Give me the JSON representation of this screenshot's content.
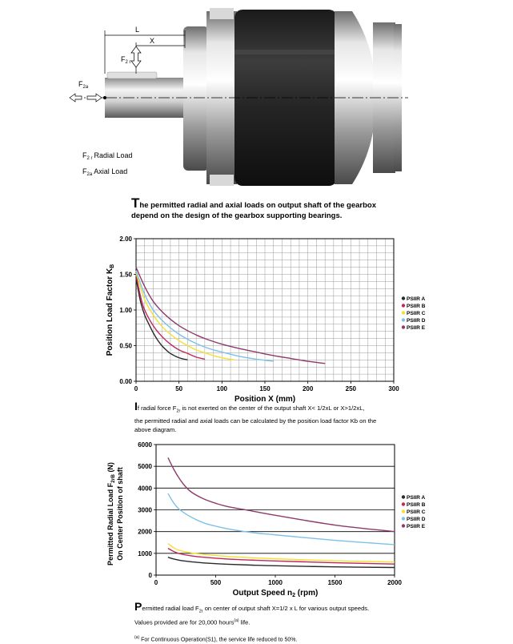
{
  "illustration": {
    "dim_L": "L",
    "dim_X": "X",
    "f2r_main": "F",
    "f2r_sub": "2 r",
    "f2a_main": "F",
    "f2a_sub": "2a",
    "legend_radial_main": "F",
    "legend_radial_sub": "2 r",
    "legend_radial_text": "Radial Load",
    "legend_axial_main": "F",
    "legend_axial_sub": "2a",
    "legend_axial_text": "Axial Load"
  },
  "caption1": {
    "first_letter": "T",
    "line1_rest": "he permitted radial and axial loads on output shaft of the gearbox",
    "line2": "depend on the design of the gearbox supporting bearings."
  },
  "note1": {
    "first_letter": "I",
    "line1_a": "f radial force F",
    "line1_sub": "2r",
    "line1_b": " is not exerted on the center of the  output shaft X< 1/2xL or X>1/2xL,",
    "line2": "the permitted radial and axial loads can be calculated by the position load factor Kb on the",
    "line3": "above diagram."
  },
  "note2": {
    "first_letter": "P",
    "line1_a": "ermitted radial load F",
    "line1_sub": "2r",
    "line1_b": " on center of output shaft X=1/2 x L for various output speeds.",
    "line2_a": "Values provided are for 20,000 hours",
    "line2_sup": "(a)",
    "line2_b": " life.",
    "footnote_sup": "(a)",
    "footnote": " For Continuous Operation(S1), the service life reduced to 50%."
  },
  "colors": {
    "PSIIR A": "#2a2a2a",
    "PSIIR B": "#c0275a",
    "PSIIR C": "#f2e130",
    "PSIIR D": "#7fc0e8",
    "PSIIR E": "#8e3a6a"
  },
  "chart_data": [
    {
      "type": "line",
      "xlabel": "Position X (mm)",
      "ylabel_main": "Position Load Factor K",
      "ylabel_sub": "B",
      "xlim": [
        0,
        300
      ],
      "ylim": [
        0,
        2.0
      ],
      "x_ticks": [
        0,
        50,
        100,
        150,
        200,
        250,
        300
      ],
      "y_ticks": [
        "0.00",
        "0.50",
        "1.00",
        "1.50",
        "2.00"
      ],
      "grid": true,
      "legend_position": "right",
      "series": [
        {
          "name": "PSIIR A",
          "points": [
            [
              0,
              1.45
            ],
            [
              5,
              1.13
            ],
            [
              10,
              0.93
            ],
            [
              15,
              0.8
            ],
            [
              20,
              0.68
            ],
            [
              25,
              0.58
            ],
            [
              30,
              0.5
            ],
            [
              35,
              0.44
            ],
            [
              40,
              0.39
            ],
            [
              50,
              0.33
            ],
            [
              60,
              0.3
            ]
          ]
        },
        {
          "name": "PSIIR B",
          "points": [
            [
              0,
              1.5
            ],
            [
              5,
              1.2
            ],
            [
              10,
              1.0
            ],
            [
              20,
              0.78
            ],
            [
              30,
              0.63
            ],
            [
              40,
              0.52
            ],
            [
              50,
              0.44
            ],
            [
              60,
              0.39
            ],
            [
              70,
              0.34
            ],
            [
              80,
              0.31
            ]
          ]
        },
        {
          "name": "PSIIR C",
          "points": [
            [
              0,
              1.52
            ],
            [
              10,
              1.15
            ],
            [
              20,
              0.93
            ],
            [
              30,
              0.77
            ],
            [
              40,
              0.66
            ],
            [
              50,
              0.57
            ],
            [
              60,
              0.5
            ],
            [
              70,
              0.44
            ],
            [
              80,
              0.4
            ],
            [
              90,
              0.36
            ],
            [
              100,
              0.33
            ],
            [
              115,
              0.3
            ]
          ]
        },
        {
          "name": "PSIIR D",
          "points": [
            [
              0,
              1.55
            ],
            [
              10,
              1.22
            ],
            [
              20,
              1.0
            ],
            [
              30,
              0.86
            ],
            [
              40,
              0.75
            ],
            [
              50,
              0.66
            ],
            [
              60,
              0.59
            ],
            [
              70,
              0.53
            ],
            [
              80,
              0.48
            ],
            [
              90,
              0.44
            ],
            [
              100,
              0.41
            ],
            [
              120,
              0.35
            ],
            [
              140,
              0.31
            ],
            [
              160,
              0.28
            ]
          ]
        },
        {
          "name": "PSIIR E",
          "points": [
            [
              0,
              1.6
            ],
            [
              10,
              1.33
            ],
            [
              20,
              1.12
            ],
            [
              30,
              0.98
            ],
            [
              40,
              0.87
            ],
            [
              50,
              0.78
            ],
            [
              60,
              0.71
            ],
            [
              70,
              0.65
            ],
            [
              80,
              0.6
            ],
            [
              100,
              0.52
            ],
            [
              120,
              0.46
            ],
            [
              140,
              0.41
            ],
            [
              160,
              0.36
            ],
            [
              180,
              0.32
            ],
            [
              200,
              0.28
            ],
            [
              220,
              0.25
            ]
          ]
        }
      ]
    },
    {
      "type": "line",
      "xlabel_main": "Output Speed n",
      "xlabel_sub": "2",
      "xlabel_tail": " (rpm)",
      "ylabel_line1_main": "Permitted Radial Load F",
      "ylabel_line1_sub": "2rB",
      "ylabel_line1_tail": " (N)",
      "ylabel_line2": "On Center Position of shaft",
      "xlim": [
        0,
        2000
      ],
      "ylim": [
        0,
        6000
      ],
      "x_ticks": [
        0,
        500,
        1000,
        1500,
        2000
      ],
      "y_ticks": [
        0,
        1000,
        2000,
        3000,
        4000,
        5000,
        6000
      ],
      "grid": "horizontal",
      "legend_position": "right",
      "series": [
        {
          "name": "PSIIR A",
          "points": [
            [
              100,
              820
            ],
            [
              150,
              740
            ],
            [
              200,
              680
            ],
            [
              300,
              610
            ],
            [
              400,
              560
            ],
            [
              600,
              500
            ],
            [
              800,
              460
            ],
            [
              1000,
              430
            ],
            [
              1500,
              380
            ],
            [
              2000,
              350
            ]
          ]
        },
        {
          "name": "PSIIR B",
          "points": [
            [
              100,
              1230
            ],
            [
              150,
              1080
            ],
            [
              200,
              980
            ],
            [
              300,
              880
            ],
            [
              400,
              820
            ],
            [
              600,
              740
            ],
            [
              800,
              690
            ],
            [
              1000,
              650
            ],
            [
              1500,
              570
            ],
            [
              2000,
              510
            ]
          ]
        },
        {
          "name": "PSIIR C",
          "points": [
            [
              100,
              1450
            ],
            [
              150,
              1250
            ],
            [
              200,
              1130
            ],
            [
              300,
              1020
            ],
            [
              400,
              950
            ],
            [
              600,
              860
            ],
            [
              800,
              800
            ],
            [
              1000,
              750
            ],
            [
              1500,
              660
            ],
            [
              2000,
              600
            ]
          ]
        },
        {
          "name": "PSIIR D",
          "points": [
            [
              100,
              3750
            ],
            [
              150,
              3300
            ],
            [
              200,
              3000
            ],
            [
              300,
              2650
            ],
            [
              400,
              2400
            ],
            [
              500,
              2250
            ],
            [
              600,
              2130
            ],
            [
              800,
              1960
            ],
            [
              1000,
              1850
            ],
            [
              1500,
              1600
            ],
            [
              2000,
              1400
            ]
          ]
        },
        {
          "name": "PSIIR E",
          "points": [
            [
              100,
              5400
            ],
            [
              150,
              4850
            ],
            [
              200,
              4400
            ],
            [
              250,
              4050
            ],
            [
              300,
              3800
            ],
            [
              400,
              3500
            ],
            [
              500,
              3300
            ],
            [
              600,
              3150
            ],
            [
              800,
              2950
            ],
            [
              1000,
              2750
            ],
            [
              1500,
              2300
            ],
            [
              2000,
              2000
            ]
          ]
        }
      ]
    }
  ]
}
